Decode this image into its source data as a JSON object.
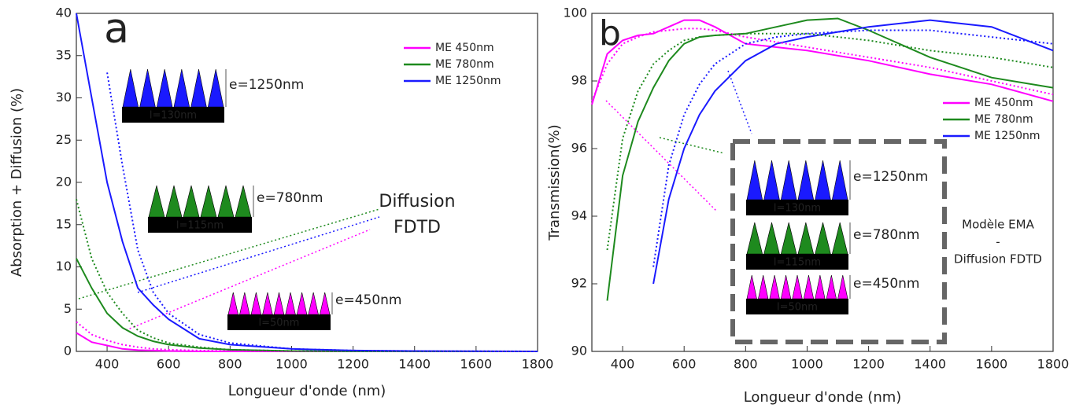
{
  "chart_data": [
    {
      "type": "line",
      "panel_label": "a",
      "xlabel": "Longueur d'onde (nm)",
      "ylabel": "Absorption + Diffusion (%)",
      "xlim": [
        300,
        1800
      ],
      "ylim": [
        0,
        40
      ],
      "xticks": [
        400,
        600,
        800,
        1000,
        1200,
        1400,
        1600,
        1800
      ],
      "yticks": [
        0,
        5,
        10,
        15,
        20,
        25,
        30,
        35,
        40
      ],
      "legend": "upper right",
      "x": [
        300,
        350,
        400,
        450,
        500,
        550,
        600,
        700,
        800,
        1000,
        1200,
        1400,
        1800
      ],
      "series": [
        {
          "name": "ME 450nm",
          "color": "#ff00ff",
          "style": "solid",
          "values": [
            2.2,
            1.1,
            0.7,
            0.3,
            0.15,
            0.1,
            0.05,
            0,
            0,
            0,
            0,
            0,
            0
          ]
        },
        {
          "name": "ME 780nm",
          "color": "#1e8a1e",
          "style": "solid",
          "values": [
            11,
            7.5,
            4.5,
            2.8,
            1.8,
            1.2,
            0.8,
            0.4,
            0.2,
            0.05,
            0,
            0,
            0
          ]
        },
        {
          "name": "ME 1250nm",
          "color": "#1a1aff",
          "style": "solid",
          "values": [
            40,
            30,
            20,
            13,
            7.5,
            5.5,
            3.8,
            1.5,
            0.8,
            0.3,
            0.1,
            0.05,
            0
          ]
        },
        {
          "color": "#ff00ff",
          "style": "dotted",
          "values": [
            3.5,
            2,
            1.3,
            0.8,
            0.5,
            0.3,
            0.2,
            0.1,
            0.05,
            0,
            0,
            0,
            0
          ]
        },
        {
          "color": "#1e8a1e",
          "style": "dotted",
          "values": [
            18,
            11,
            7,
            4.5,
            2.5,
            1.6,
            1,
            0.5,
            0.2,
            0.05,
            0,
            0,
            0
          ]
        },
        {
          "color": "#1a1aff",
          "style": "dotted",
          "values": [
            null,
            null,
            33,
            22,
            12,
            7,
            4.5,
            2,
            1,
            0.3,
            0.1,
            0.05,
            0
          ]
        }
      ],
      "annotations": [
        "e=1250nm",
        "l=130nm",
        "e=780nm",
        "l=115nm",
        "e=450nm",
        "l=50nm",
        "Diffusion",
        "FDTD"
      ]
    },
    {
      "type": "line",
      "panel_label": "b",
      "xlabel": "Longueur d'onde (nm)",
      "ylabel": "Transmission(%)",
      "xlim": [
        300,
        1800
      ],
      "ylim": [
        90,
        100
      ],
      "xticks": [
        400,
        600,
        800,
        1000,
        1200,
        1400,
        1600,
        1800
      ],
      "yticks": [
        90,
        92,
        94,
        96,
        98,
        100
      ],
      "legend": "right",
      "x": [
        300,
        350,
        400,
        450,
        500,
        550,
        600,
        650,
        700,
        800,
        900,
        1000,
        1100,
        1200,
        1400,
        1600,
        1800
      ],
      "series": [
        {
          "name": "ME 450nm",
          "color": "#ff00ff",
          "style": "solid",
          "values": [
            97.3,
            98.8,
            99.2,
            99.35,
            99.4,
            99.6,
            99.8,
            99.8,
            99.6,
            99.1,
            99.0,
            98.9,
            98.75,
            98.6,
            98.2,
            97.9,
            97.4
          ]
        },
        {
          "name": "ME 780nm",
          "color": "#1e8a1e",
          "style": "solid",
          "values": [
            null,
            91.5,
            95.2,
            96.8,
            97.8,
            98.6,
            99.1,
            99.3,
            99.35,
            99.4,
            99.6,
            99.8,
            99.85,
            99.5,
            98.7,
            98.1,
            97.8
          ]
        },
        {
          "name": "ME 1250nm",
          "color": "#1a1aff",
          "style": "solid",
          "values": [
            null,
            null,
            null,
            null,
            92.0,
            94.5,
            96.0,
            97.0,
            97.7,
            98.6,
            99.1,
            99.3,
            99.45,
            99.6,
            99.8,
            99.6,
            98.9
          ]
        },
        {
          "color": "#ff00ff",
          "style": "dotted",
          "values": [
            97.4,
            98.5,
            99.1,
            99.3,
            99.45,
            99.5,
            99.55,
            99.55,
            99.5,
            99.3,
            99.15,
            99.0,
            98.85,
            98.7,
            98.4,
            98.0,
            97.6
          ]
        },
        {
          "color": "#1e8a1e",
          "style": "dotted",
          "values": [
            null,
            93.0,
            96.3,
            97.7,
            98.5,
            98.9,
            99.2,
            99.3,
            99.35,
            99.4,
            99.4,
            99.4,
            99.3,
            99.2,
            98.9,
            98.7,
            98.4
          ]
        },
        {
          "color": "#1a1aff",
          "style": "dotted",
          "values": [
            null,
            null,
            null,
            null,
            92.5,
            95.5,
            97.0,
            97.9,
            98.5,
            99.1,
            99.3,
            99.4,
            99.45,
            99.5,
            99.5,
            99.3,
            99.1
          ]
        }
      ],
      "annotations": [
        "e=1250nm",
        "l=130nm",
        "e=780nm",
        "l=115nm",
        "e=450nm",
        "l=50nm",
        "Modèle EMA",
        "-",
        "Diffusion FDTD"
      ]
    }
  ]
}
